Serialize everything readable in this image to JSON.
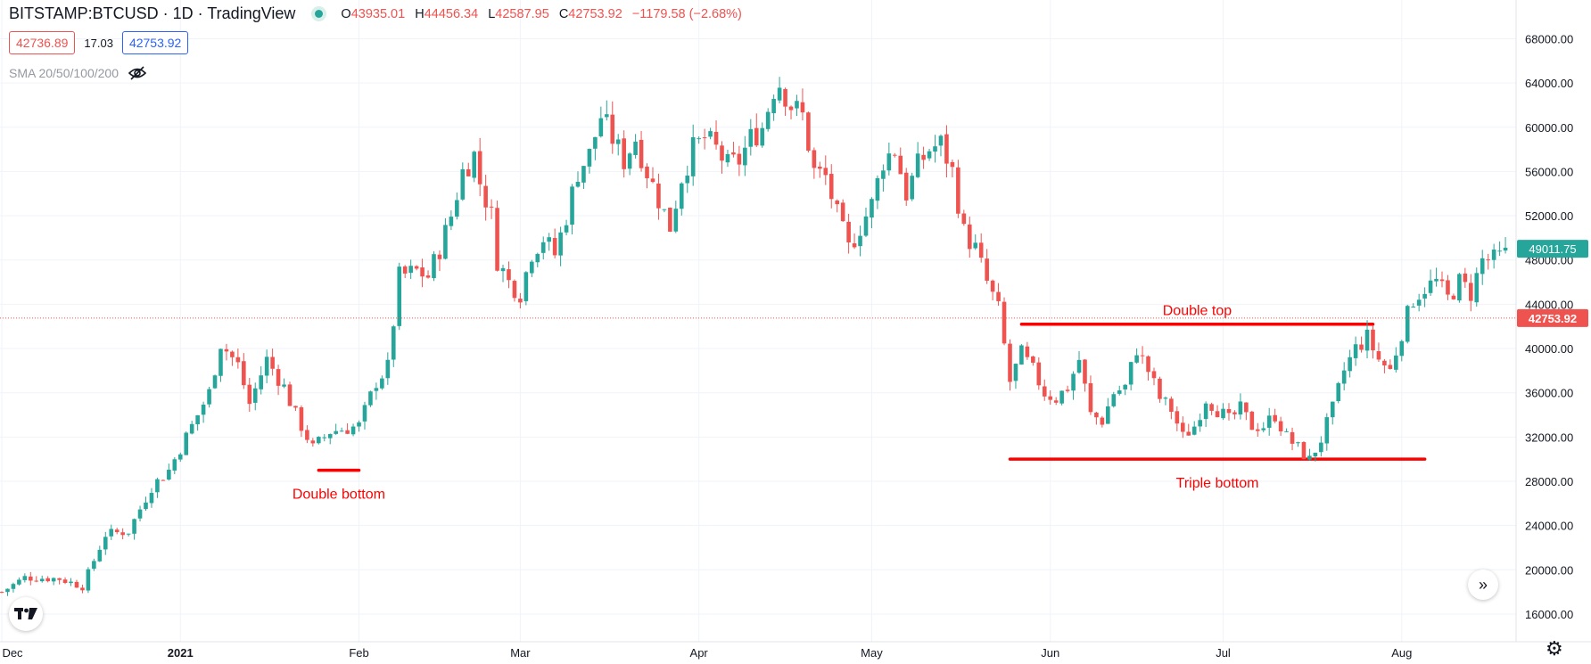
{
  "header": {
    "symbol": "BITSTAMP:BTCUSD · 1D · TradingView",
    "open_label": "O",
    "open": "43935.01",
    "high_label": "H",
    "high": "44456.34",
    "low_label": "L",
    "low": "42587.95",
    "close_label": "C",
    "close": "42753.92",
    "change": "−1179.58 (−2.68%)"
  },
  "trade": {
    "sell": "42736.89",
    "spread": "17.03",
    "buy": "42753.92"
  },
  "indicator": {
    "label": "SMA 20/50/100/200",
    "icon": "eye-off-icon"
  },
  "buttons": {
    "goto_icon": "double-chevron-right-icon",
    "settings_icon": "gear-icon",
    "logo_icon": "tradingview-logo-icon"
  },
  "colors": {
    "up": "#26a69a",
    "down": "#ef5350",
    "annotation": "#ff0000",
    "grid": "#f0f3fa"
  },
  "chart_data": {
    "type": "candlestick",
    "title": "",
    "ylim": [
      13500,
      71500
    ],
    "y_ticks": [
      "68000.00",
      "64000.00",
      "60000.00",
      "56000.00",
      "52000.00",
      "48000.00",
      "44000.00",
      "40000.00",
      "36000.00",
      "32000.00",
      "28000.00",
      "24000.00",
      "20000.00",
      "16000.00"
    ],
    "x_ticks": [
      {
        "label": "Dec",
        "index": 0,
        "bold": false
      },
      {
        "label": "2021",
        "index": 31,
        "bold": true
      },
      {
        "label": "Feb",
        "index": 62,
        "bold": false
      },
      {
        "label": "Mar",
        "index": 90,
        "bold": false
      },
      {
        "label": "Apr",
        "index": 121,
        "bold": false
      },
      {
        "label": "May",
        "index": 151,
        "bold": false
      },
      {
        "label": "Jun",
        "index": 182,
        "bold": false
      },
      {
        "label": "Jul",
        "index": 212,
        "bold": false
      },
      {
        "label": "Aug",
        "index": 243,
        "bold": false
      }
    ],
    "start_date": "2020-12-01",
    "last_price": 42753.92,
    "last_price_label": "42753.92",
    "crosshair_price": 49011.75,
    "crosshair_price_label": "49011.75",
    "anchors": [
      [
        0,
        18000
      ],
      [
        4,
        19300
      ],
      [
        10,
        19200
      ],
      [
        14,
        18500
      ],
      [
        18,
        23200
      ],
      [
        22,
        23500
      ],
      [
        26,
        27500
      ],
      [
        29,
        29000
      ],
      [
        32,
        32000
      ],
      [
        36,
        36000
      ],
      [
        38,
        40500
      ],
      [
        41,
        38500
      ],
      [
        43,
        35000
      ],
      [
        46,
        39000
      ],
      [
        49,
        36500
      ],
      [
        51,
        34000
      ],
      [
        54,
        31000
      ],
      [
        57,
        32500
      ],
      [
        60,
        32800
      ],
      [
        62,
        33000
      ],
      [
        65,
        37000
      ],
      [
        67,
        38300
      ],
      [
        69,
        46500
      ],
      [
        72,
        47000
      ],
      [
        74,
        46500
      ],
      [
        76,
        49000
      ],
      [
        78,
        52000
      ],
      [
        80,
        56000
      ],
      [
        82,
        57500
      ],
      [
        83,
        55000
      ],
      [
        85,
        52000
      ],
      [
        86,
        48000
      ],
      [
        88,
        46000
      ],
      [
        90,
        45000
      ],
      [
        92,
        48700
      ],
      [
        94,
        50000
      ],
      [
        96,
        48500
      ],
      [
        98,
        52000
      ],
      [
        100,
        56000
      ],
      [
        102,
        57500
      ],
      [
        104,
        61000
      ],
      [
        106,
        59000
      ],
      [
        108,
        57000
      ],
      [
        110,
        59000
      ],
      [
        112,
        56000
      ],
      [
        114,
        53500
      ],
      [
        116,
        51000
      ],
      [
        118,
        55500
      ],
      [
        120,
        58000
      ],
      [
        122,
        59000
      ],
      [
        124,
        58000
      ],
      [
        126,
        56500
      ],
      [
        128,
        57000
      ],
      [
        130,
        59000
      ],
      [
        132,
        60000
      ],
      [
        134,
        63500
      ],
      [
        135,
        64000
      ],
      [
        137,
        62000
      ],
      [
        139,
        61000
      ],
      [
        141,
        56000
      ],
      [
        143,
        55500
      ],
      [
        145,
        52000
      ],
      [
        147,
        49000
      ],
      [
        149,
        51000
      ],
      [
        151,
        53000
      ],
      [
        153,
        57000
      ],
      [
        155,
        58000
      ],
      [
        157,
        54000
      ],
      [
        159,
        56500
      ],
      [
        161,
        58000
      ],
      [
        163,
        58500
      ],
      [
        165,
        56000
      ],
      [
        167,
        50500
      ],
      [
        169,
        49000
      ],
      [
        171,
        46000
      ],
      [
        173,
        43500
      ],
      [
        175,
        37000
      ],
      [
        177,
        39500
      ],
      [
        179,
        38000
      ],
      [
        181,
        36000
      ],
      [
        183,
        35500
      ],
      [
        185,
        36500
      ],
      [
        187,
        39000
      ],
      [
        189,
        34000
      ],
      [
        191,
        33500
      ],
      [
        193,
        36000
      ],
      [
        195,
        36500
      ],
      [
        197,
        40000
      ],
      [
        199,
        38000
      ],
      [
        201,
        35500
      ],
      [
        203,
        34500
      ],
      [
        205,
        32000
      ],
      [
        207,
        33000
      ],
      [
        209,
        35500
      ],
      [
        211,
        34500
      ],
      [
        213,
        33500
      ],
      [
        215,
        34500
      ],
      [
        217,
        33000
      ],
      [
        219,
        33000
      ],
      [
        221,
        34000
      ],
      [
        223,
        32000
      ],
      [
        225,
        31000
      ],
      [
        227,
        29900
      ],
      [
        229,
        31800
      ],
      [
        231,
        34500
      ],
      [
        233,
        38000
      ],
      [
        235,
        40000
      ],
      [
        237,
        41000
      ],
      [
        239,
        39000
      ],
      [
        241,
        38000
      ],
      [
        243,
        41500
      ],
      [
        245,
        44500
      ],
      [
        247,
        45500
      ],
      [
        249,
        46000
      ],
      [
        251,
        44500
      ],
      [
        253,
        46000
      ],
      [
        255,
        45000
      ],
      [
        257,
        48000
      ],
      [
        259,
        48000
      ],
      [
        261,
        48500
      ]
    ],
    "annotations": [
      {
        "label": "Double bottom",
        "type": "horizontal_segment",
        "from_index": 55,
        "to_index": 62,
        "price": 29000
      },
      {
        "label": "Double top",
        "type": "horizontal_segment",
        "from_index": 177,
        "to_index": 238,
        "price": 42200
      },
      {
        "label": "Triple bottom",
        "type": "horizontal_segment",
        "from_index": 175,
        "to_index": 247,
        "price": 30000
      }
    ]
  }
}
